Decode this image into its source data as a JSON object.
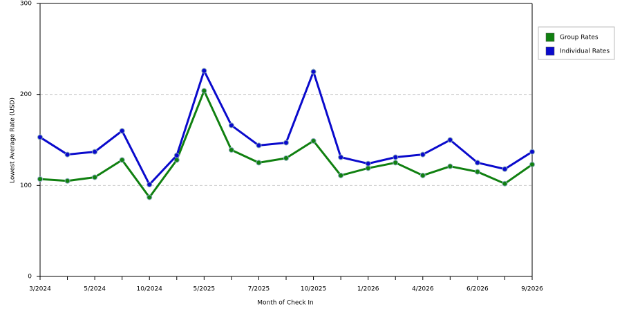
{
  "chart_data": {
    "type": "line",
    "x_label": "Month of Check In",
    "y_label": "Lowest Average Rate (USD)",
    "categories": [
      "3/2024",
      null,
      "5/2024",
      null,
      "10/2024",
      null,
      "5/2025",
      null,
      "7/2025",
      null,
      "10/2025",
      null,
      "1/2026",
      null,
      "4/2026",
      null,
      "6/2026",
      null,
      "9/2026"
    ],
    "series": [
      {
        "name": "Group Rates",
        "color": "#108010",
        "values": [
          107,
          105,
          109,
          128,
          87,
          128,
          204,
          139,
          125,
          130,
          149,
          111,
          119,
          125,
          111,
          121,
          115,
          102,
          123
        ]
      },
      {
        "name": "Individual Rates",
        "color": "#0a0acc",
        "values": [
          153,
          134,
          137,
          160,
          101,
          133,
          226,
          166,
          144,
          147,
          225,
          131,
          124,
          131,
          134,
          150,
          125,
          118,
          137
        ]
      }
    ],
    "ylim": [
      0,
      300
    ],
    "yticks": [
      0,
      100,
      200,
      300
    ],
    "grid": true,
    "legend": "right"
  }
}
